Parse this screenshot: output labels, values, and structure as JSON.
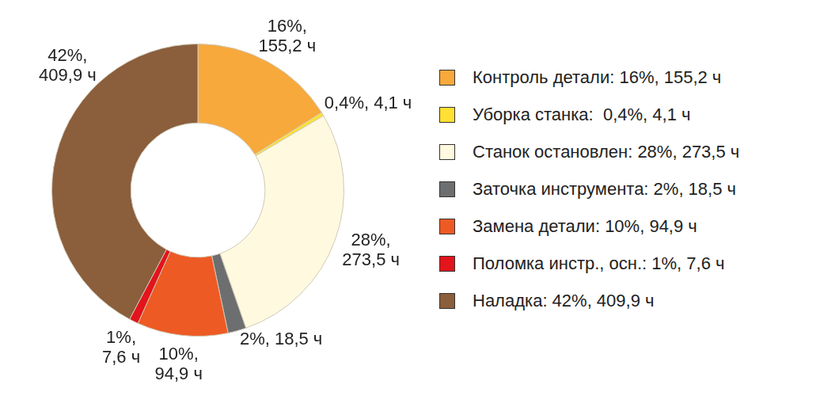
{
  "chart_data": {
    "type": "doughnut",
    "categories": [
      "Контроль детали: 16%, 155,2 ч",
      "Уборка станка:  0,4%, 4,1 ч",
      "Станок остановлен: 28%, 273,5 ч",
      "Заточка инструмента: 2%, 18,5 ч",
      "Замена детали: 10%, 94,9 ч",
      "Поломка инстр., осн.: 1%, 7,6 ч",
      "Наладка: 42%, 409,9 ч"
    ],
    "values": [
      16,
      0.4,
      28,
      2,
      10,
      1,
      42
    ],
    "hours": [
      155.2,
      4.1,
      273.5,
      18.5,
      94.9,
      7.6,
      409.9
    ],
    "value_labels": [
      "16%, 155,2 ч",
      "0,4%, 4,1 ч",
      "28%, 273,5 ч",
      "2%, 18,5 ч",
      "10%, 94,9 ч",
      "1%, 7,6 ч",
      "42%, 409,9 ч"
    ],
    "colors": [
      "#f7a93b",
      "#ffe033",
      "#fff9e0",
      "#6d6e70",
      "#ee5a24",
      "#e3141b",
      "#8b5e3c"
    ],
    "legend": "right",
    "data_labels": true
  }
}
